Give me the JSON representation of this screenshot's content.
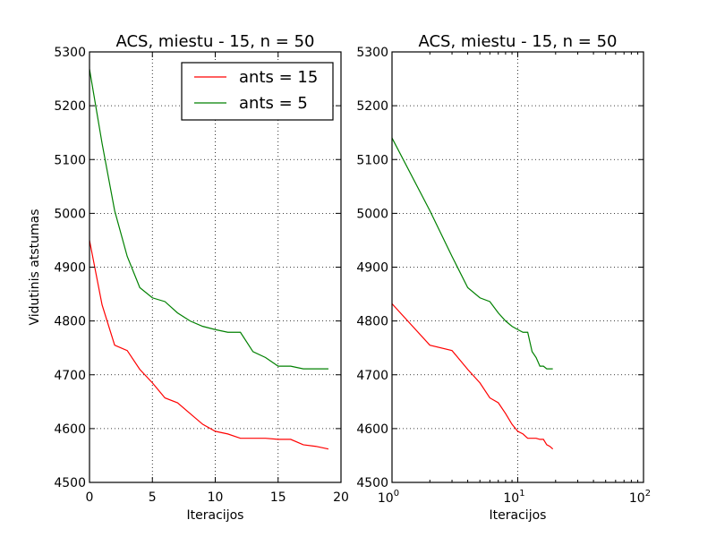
{
  "chart_data": [
    {
      "type": "line",
      "title": "ACS, miestu - 15, n = 50",
      "xlabel": "Iteracijos",
      "ylabel": "Vidutinis atstumas",
      "xscale": "linear",
      "xlim": [
        0,
        20
      ],
      "ylim": [
        4500,
        5300
      ],
      "xticks": [
        0,
        5,
        10,
        15,
        20
      ],
      "xtick_labels": [
        "0",
        "5",
        "10",
        "15",
        "20"
      ],
      "yticks": [
        4500,
        4600,
        4700,
        4800,
        4900,
        5000,
        5100,
        5200,
        5300
      ],
      "ytick_labels": [
        "4500",
        "4600",
        "4700",
        "4800",
        "4900",
        "5000",
        "5100",
        "5200",
        "5300"
      ],
      "grid": true,
      "legend": "top-right",
      "x": [
        0,
        1,
        2,
        3,
        4,
        5,
        6,
        7,
        8,
        9,
        10,
        11,
        12,
        13,
        14,
        15,
        16,
        17,
        18,
        19
      ],
      "series": [
        {
          "name": "ants = 15",
          "color": "#ff0000",
          "values": [
            4950,
            4830,
            4755,
            4745,
            4710,
            4685,
            4657,
            4648,
            4628,
            4608,
            4595,
            4590,
            4582,
            4582,
            4582,
            4580,
            4580,
            4570,
            4567,
            4562
          ]
        },
        {
          "name": "ants = 5",
          "color": "#008000",
          "values": [
            5268,
            5130,
            5005,
            4920,
            4862,
            4843,
            4836,
            4815,
            4800,
            4790,
            4784,
            4779,
            4779,
            4743,
            4732,
            4716,
            4716,
            4711,
            4711,
            4711
          ]
        }
      ]
    },
    {
      "type": "line",
      "title": "ACS, miestu - 15, n = 50",
      "xlabel": "Iteracijos",
      "ylabel": "",
      "xscale": "log",
      "xlim": [
        1,
        100
      ],
      "ylim": [
        4500,
        5300
      ],
      "xticks": [
        1,
        10,
        100
      ],
      "xtick_labels": [
        "10^0",
        "10^1",
        "10^2"
      ],
      "yticks": [
        4500,
        4600,
        4700,
        4800,
        4900,
        5000,
        5100,
        5200,
        5300
      ],
      "ytick_labels": [
        "4500",
        "4600",
        "4700",
        "4800",
        "4900",
        "5000",
        "5100",
        "5200",
        "5300"
      ],
      "grid": true,
      "x": [
        1,
        2,
        3,
        4,
        5,
        6,
        7,
        8,
        9,
        10,
        11,
        12,
        13,
        14,
        15,
        16,
        17,
        18,
        19
      ],
      "series": [
        {
          "color": "#ff0000",
          "values": [
            4832,
            4755,
            4745,
            4710,
            4685,
            4657,
            4648,
            4628,
            4608,
            4595,
            4590,
            4582,
            4582,
            4582,
            4580,
            4580,
            4570,
            4567,
            4562
          ]
        },
        {
          "color": "#008000",
          "values": [
            5140,
            5005,
            4920,
            4862,
            4843,
            4836,
            4815,
            4800,
            4790,
            4784,
            4779,
            4779,
            4743,
            4732,
            4716,
            4716,
            4711,
            4711,
            4711
          ]
        }
      ]
    }
  ]
}
